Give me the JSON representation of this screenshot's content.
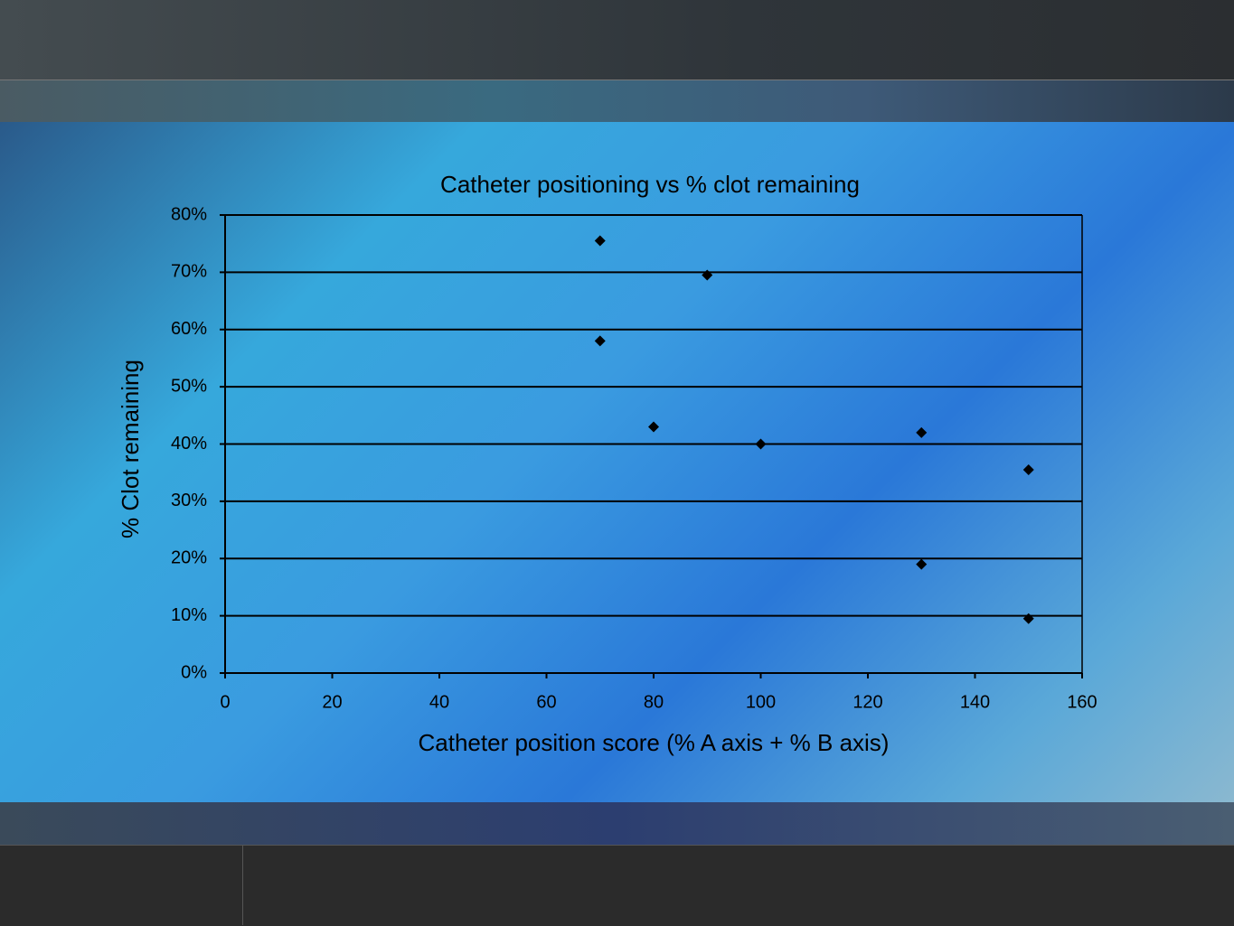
{
  "chart_data": {
    "type": "scatter",
    "title": "Catheter positioning vs % clot remaining",
    "x_label": "Catheter position score (% A axis + % B axis)",
    "y_label": "% Clot remaining",
    "x": [
      70,
      90,
      70,
      80,
      100,
      130,
      150,
      130,
      150
    ],
    "values": [
      75.5,
      69.5,
      58,
      43,
      40,
      42,
      35.5,
      19,
      9.5
    ],
    "color": "#000000",
    "xlim": [
      0,
      160
    ],
    "xticks": [
      0,
      20,
      40,
      60,
      80,
      100,
      120,
      140,
      160
    ],
    "ylim": [
      0,
      80
    ],
    "yticks": [
      {
        "value": 0,
        "label": "0%"
      },
      {
        "value": 10,
        "label": "10%"
      },
      {
        "value": 20,
        "label": "20%"
      },
      {
        "value": 30,
        "label": "30%"
      },
      {
        "value": 40,
        "label": "40%"
      },
      {
        "value": 50,
        "label": "50%"
      },
      {
        "value": 60,
        "label": "60%"
      },
      {
        "value": 70,
        "label": "70%"
      },
      {
        "value": 80,
        "label": "80%"
      }
    ],
    "grid": true
  }
}
